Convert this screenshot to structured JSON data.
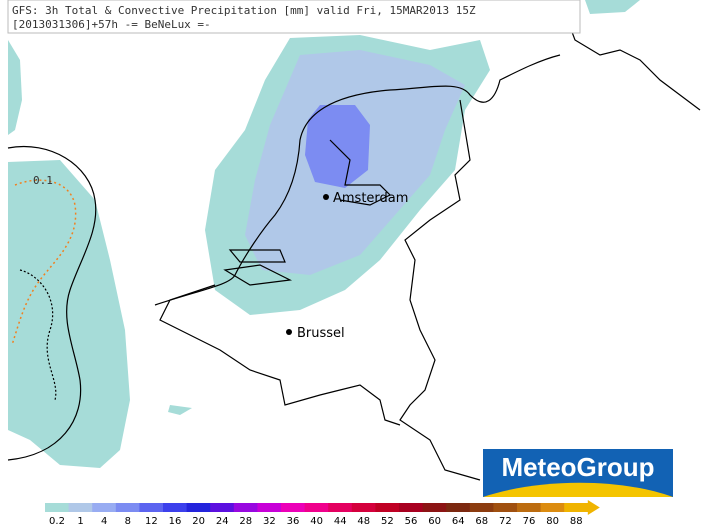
{
  "header": {
    "line1": "GFS: 3h Total & Convective Precipitation [mm] valid Fri, 15MAR2013 15Z",
    "line2": "[2013031306]+57h -= BeNeLux =-"
  },
  "map": {
    "cities": [
      {
        "name": "Amsterdam"
      },
      {
        "name": "Brussel"
      }
    ],
    "contour_label": "0.1"
  },
  "logo": "MeteoGroup",
  "legend": {
    "levels": [
      0.2,
      1,
      4,
      8,
      12,
      16,
      20,
      24,
      28,
      32,
      36,
      40,
      44,
      48,
      52,
      56,
      60,
      64,
      68,
      72,
      76,
      80,
      88
    ],
    "colors": [
      "#a6dcd8",
      "#b0c8e8",
      "#98acf2",
      "#7c8cf2",
      "#5c64f0",
      "#3c40ec",
      "#2424dc",
      "#5c10e0",
      "#9808e0",
      "#c800d8",
      "#ec00b8",
      "#f0008c",
      "#e40060",
      "#d4003c",
      "#c00024",
      "#a80020",
      "#8c1414",
      "#7c2810",
      "#8c3c10",
      "#a05010",
      "#bc6c10",
      "#dc8c10",
      "#f0b400"
    ]
  }
}
